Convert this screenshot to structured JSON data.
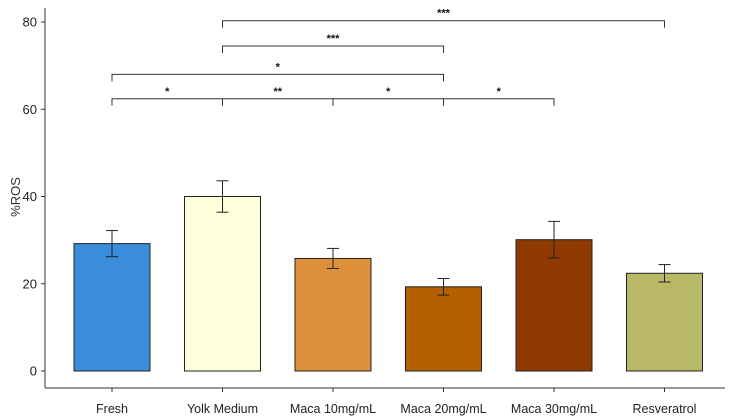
{
  "chart_data": {
    "type": "bar",
    "title": "",
    "xlabel": "",
    "ylabel": "%ROS",
    "ylim": [
      0,
      80
    ],
    "yticks": [
      0,
      20,
      40,
      60,
      80
    ],
    "grid": false,
    "categories": [
      "Fresh",
      "Yolk Medium",
      "Maca 10mg/mL",
      "Maca 20mg/mL",
      "Maca 30mg/mL",
      "Resveratrol"
    ],
    "values": [
      29.2,
      40.0,
      25.8,
      19.3,
      30.1,
      22.4
    ],
    "errors": [
      3.0,
      3.6,
      2.3,
      1.9,
      4.2,
      2.0
    ],
    "colors": [
      "#3a8ddb",
      "#ffffdc",
      "#dd903c",
      "#b46000",
      "#8f3a00",
      "#b9b866"
    ],
    "significance": [
      {
        "from": 1,
        "to": 5,
        "y": 80.3,
        "label": "***"
      },
      {
        "from": 1,
        "to": 3,
        "y": 74.5,
        "label": "***"
      },
      {
        "from": 0,
        "to": 3,
        "y": 68.0,
        "label": "*"
      },
      {
        "from": 0,
        "to": 1,
        "y": 62.4,
        "label": "*"
      },
      {
        "from": 1,
        "to": 2,
        "y": 62.4,
        "label": "**"
      },
      {
        "from": 2,
        "to": 3,
        "y": 62.4,
        "label": "*"
      },
      {
        "from": 3,
        "to": 4,
        "y": 62.4,
        "label": "*"
      }
    ]
  }
}
